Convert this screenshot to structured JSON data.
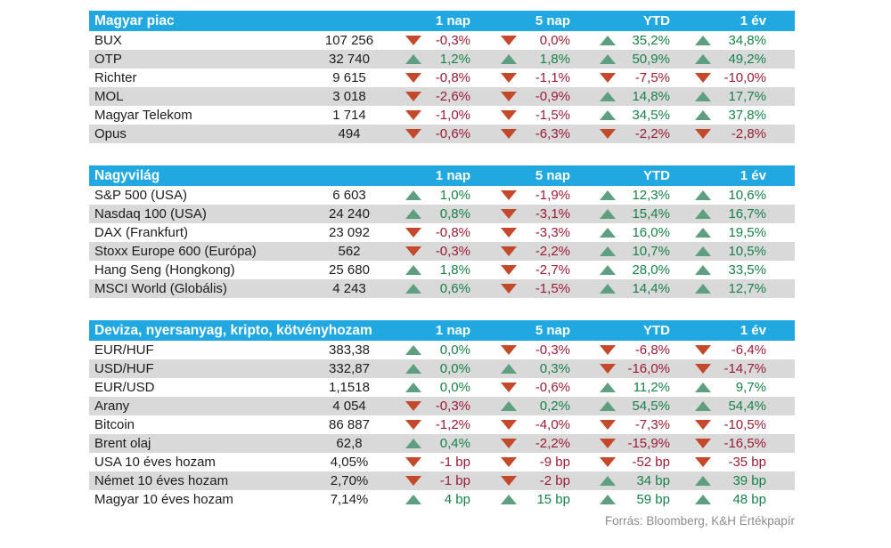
{
  "report": {
    "footer": "Forrás: Bloomberg, K&H Értékpapír"
  },
  "colors": {
    "header_bg": "#21a8e1",
    "header_text": "#ffffff",
    "row_alt_bg": "#d9d9d9",
    "up_triangle": "#5d9f80",
    "down_triangle": "#c4492b",
    "up_text": "#18814a",
    "down_text": "#9a1c36",
    "body_text": "#1c1c1c",
    "footer_text": "#8c8c8c"
  },
  "icons": {
    "up": "triangle-up-icon",
    "down": "triangle-down-icon"
  },
  "columns": [
    "1 nap",
    "5 nap",
    "YTD",
    "1 év"
  ],
  "tables": [
    {
      "title": "Magyar piac",
      "rows": [
        {
          "name": "BUX",
          "value": "107 256",
          "changes": [
            {
              "dir": "down",
              "value": "-0,3%"
            },
            {
              "dir": "down",
              "value": "0,0%"
            },
            {
              "dir": "up",
              "value": "35,2%"
            },
            {
              "dir": "up",
              "value": "34,8%"
            }
          ]
        },
        {
          "name": "OTP",
          "value": "32 740",
          "changes": [
            {
              "dir": "up",
              "value": "1,2%"
            },
            {
              "dir": "up",
              "value": "1,8%"
            },
            {
              "dir": "up",
              "value": "50,9%"
            },
            {
              "dir": "up",
              "value": "49,2%"
            }
          ]
        },
        {
          "name": "Richter",
          "value": "9 615",
          "changes": [
            {
              "dir": "down",
              "value": "-0,8%"
            },
            {
              "dir": "down",
              "value": "-1,1%"
            },
            {
              "dir": "down",
              "value": "-7,5%"
            },
            {
              "dir": "down",
              "value": "-10,0%"
            }
          ]
        },
        {
          "name": "MOL",
          "value": "3 018",
          "changes": [
            {
              "dir": "down",
              "value": "-2,6%"
            },
            {
              "dir": "down",
              "value": "-0,9%"
            },
            {
              "dir": "up",
              "value": "14,8%"
            },
            {
              "dir": "up",
              "value": "17,7%"
            }
          ]
        },
        {
          "name": "Magyar Telekom",
          "value": "1 714",
          "changes": [
            {
              "dir": "down",
              "value": "-1,0%"
            },
            {
              "dir": "down",
              "value": "-1,5%"
            },
            {
              "dir": "up",
              "value": "34,5%"
            },
            {
              "dir": "up",
              "value": "37,8%"
            }
          ]
        },
        {
          "name": "Opus",
          "value": "494",
          "changes": [
            {
              "dir": "down",
              "value": "-0,6%"
            },
            {
              "dir": "down",
              "value": "-6,3%"
            },
            {
              "dir": "down",
              "value": "-2,2%"
            },
            {
              "dir": "down",
              "value": "-2,8%"
            }
          ]
        }
      ]
    },
    {
      "title": "Nagyvilág",
      "rows": [
        {
          "name": "S&P 500 (USA)",
          "value": "6 603",
          "changes": [
            {
              "dir": "up",
              "value": "1,0%"
            },
            {
              "dir": "down",
              "value": "-1,9%"
            },
            {
              "dir": "up",
              "value": "12,3%"
            },
            {
              "dir": "up",
              "value": "10,6%"
            }
          ]
        },
        {
          "name": "Nasdaq 100 (USA)",
          "value": "24 240",
          "changes": [
            {
              "dir": "up",
              "value": "0,8%"
            },
            {
              "dir": "down",
              "value": "-3,1%"
            },
            {
              "dir": "up",
              "value": "15,4%"
            },
            {
              "dir": "up",
              "value": "16,7%"
            }
          ]
        },
        {
          "name": "DAX (Frankfurt)",
          "value": "23 092",
          "changes": [
            {
              "dir": "down",
              "value": "-0,8%"
            },
            {
              "dir": "down",
              "value": "-3,3%"
            },
            {
              "dir": "up",
              "value": "16,0%"
            },
            {
              "dir": "up",
              "value": "19,5%"
            }
          ]
        },
        {
          "name": "Stoxx Europe 600 (Európa)",
          "value": "562",
          "changes": [
            {
              "dir": "down",
              "value": "-0,3%"
            },
            {
              "dir": "down",
              "value": "-2,2%"
            },
            {
              "dir": "up",
              "value": "10,7%"
            },
            {
              "dir": "up",
              "value": "10,5%"
            }
          ]
        },
        {
          "name": "Hang Seng (Hongkong)",
          "value": "25 680",
          "changes": [
            {
              "dir": "up",
              "value": "1,8%"
            },
            {
              "dir": "down",
              "value": "-2,7%"
            },
            {
              "dir": "up",
              "value": "28,0%"
            },
            {
              "dir": "up",
              "value": "33,5%"
            }
          ]
        },
        {
          "name": "MSCI World (Globális)",
          "value": "4 243",
          "changes": [
            {
              "dir": "up",
              "value": "0,6%"
            },
            {
              "dir": "down",
              "value": "-1,5%"
            },
            {
              "dir": "up",
              "value": "14,4%"
            },
            {
              "dir": "up",
              "value": "12,7%"
            }
          ]
        }
      ]
    },
    {
      "title": "Deviza, nyersanyag, kripto, kötvényhozam",
      "rows": [
        {
          "name": "EUR/HUF",
          "value": "383,38",
          "changes": [
            {
              "dir": "up",
              "value": "0,0%"
            },
            {
              "dir": "down",
              "value": "-0,3%"
            },
            {
              "dir": "down",
              "value": "-6,8%"
            },
            {
              "dir": "down",
              "value": "-6,4%"
            }
          ]
        },
        {
          "name": "USD/HUF",
          "value": "332,87",
          "changes": [
            {
              "dir": "up",
              "value": "0,0%"
            },
            {
              "dir": "up",
              "value": "0,3%"
            },
            {
              "dir": "down",
              "value": "-16,0%"
            },
            {
              "dir": "down",
              "value": "-14,7%"
            }
          ]
        },
        {
          "name": "EUR/USD",
          "value": "1,1518",
          "changes": [
            {
              "dir": "up",
              "value": "0,0%"
            },
            {
              "dir": "down",
              "value": "-0,6%"
            },
            {
              "dir": "up",
              "value": "11,2%"
            },
            {
              "dir": "up",
              "value": "9,7%"
            }
          ]
        },
        {
          "name": "Arany",
          "value": "4 054",
          "changes": [
            {
              "dir": "down",
              "value": "-0,3%"
            },
            {
              "dir": "up",
              "value": "0,2%"
            },
            {
              "dir": "up",
              "value": "54,5%"
            },
            {
              "dir": "up",
              "value": "54,4%"
            }
          ]
        },
        {
          "name": "Bitcoin",
          "value": "86 887",
          "changes": [
            {
              "dir": "down",
              "value": "-1,2%"
            },
            {
              "dir": "down",
              "value": "-4,0%"
            },
            {
              "dir": "down",
              "value": "-7,3%"
            },
            {
              "dir": "down",
              "value": "-10,5%"
            }
          ]
        },
        {
          "name": "Brent olaj",
          "value": "62,8",
          "changes": [
            {
              "dir": "up",
              "value": "0,4%"
            },
            {
              "dir": "down",
              "value": "-2,2%"
            },
            {
              "dir": "down",
              "value": "-15,9%"
            },
            {
              "dir": "down",
              "value": "-16,5%"
            }
          ]
        },
        {
          "name": "USA 10 éves hozam",
          "value": "4,05%",
          "changes": [
            {
              "dir": "down",
              "value": "-1 bp"
            },
            {
              "dir": "down",
              "value": "-9 bp"
            },
            {
              "dir": "down",
              "value": "-52 bp"
            },
            {
              "dir": "down",
              "value": "-35 bp"
            }
          ]
        },
        {
          "name": "Német 10 éves hozam",
          "value": "2,70%",
          "changes": [
            {
              "dir": "down",
              "value": "-1 bp"
            },
            {
              "dir": "down",
              "value": "-2 bp"
            },
            {
              "dir": "up",
              "value": "34 bp"
            },
            {
              "dir": "up",
              "value": "39 bp"
            }
          ]
        },
        {
          "name": "Magyar 10 éves hozam",
          "value": "7,14%",
          "changes": [
            {
              "dir": "up",
              "value": "4 bp"
            },
            {
              "dir": "up",
              "value": "15 bp"
            },
            {
              "dir": "up",
              "value": "59 bp"
            },
            {
              "dir": "up",
              "value": "48 bp"
            }
          ]
        }
      ]
    }
  ]
}
